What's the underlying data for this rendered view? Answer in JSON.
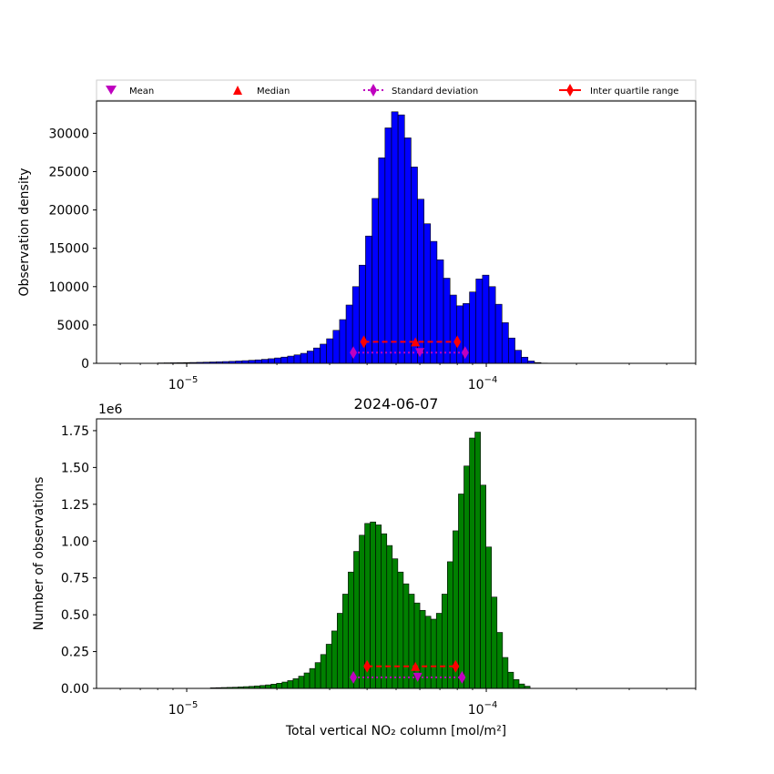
{
  "legend": {
    "mean_label": "Mean",
    "median_label": "Median",
    "std_label": "Standard deviation",
    "iqr_label": "Inter quartile range",
    "mean_color": "#bf00bf",
    "median_color": "#ff0000",
    "std_color": "#bf00bf",
    "iqr_color": "#ff0000"
  },
  "chart_data": [
    {
      "type": "bar",
      "xscale": "log",
      "xlim": [
        5e-06,
        0.0005
      ],
      "ylim": [
        0,
        34200
      ],
      "ylabel": "Observation density",
      "title": "",
      "bar_color": "#0000ff",
      "edge_color": "#000000",
      "x_tick_labels": [
        {
          "value": 1e-05,
          "base": "10",
          "exp": "−5"
        },
        {
          "value": 0.0001,
          "base": "10",
          "exp": "−4"
        }
      ],
      "y_ticks": [
        0,
        5000,
        10000,
        15000,
        20000,
        25000,
        30000
      ],
      "y_tick_labels": [
        "0",
        "5000",
        "10000",
        "15000",
        "20000",
        "25000",
        "30000"
      ],
      "bin_range": [
        8e-06,
        0.00016
      ],
      "values": [
        50,
        60,
        70,
        80,
        95,
        110,
        130,
        150,
        175,
        200,
        230,
        260,
        300,
        345,
        395,
        450,
        520,
        600,
        700,
        810,
        940,
        1100,
        1300,
        1600,
        2000,
        2500,
        3200,
        4300,
        5700,
        7600,
        10000,
        12800,
        16600,
        21500,
        26800,
        30700,
        32800,
        32400,
        29400,
        25600,
        21400,
        18200,
        15900,
        13500,
        11100,
        8900,
        7500,
        7800,
        9300,
        11000,
        11500,
        10000,
        7700,
        5300,
        3300,
        1700,
        800,
        300,
        100,
        30
      ],
      "markers": {
        "iqr": {
          "x": [
            3.9e-05,
            8e-05
          ],
          "y": 2800
        },
        "median": {
          "x": 5.8e-05,
          "y": 2800
        },
        "std": {
          "x": [
            3.6e-05,
            8.5e-05
          ],
          "y": 1400
        },
        "mean": {
          "x": 6e-05,
          "y": 1400
        }
      }
    },
    {
      "type": "bar",
      "xscale": "log",
      "xlim": [
        5e-06,
        0.0005
      ],
      "ylim": [
        0,
        1.83
      ],
      "y_multiplier_label": "1e6",
      "title": "2024-06-07",
      "ylabel": "Number of observations",
      "xlabel": "Total vertical NO₂ column [mol/m²]",
      "bar_color": "#008000",
      "edge_color": "#000000",
      "x_tick_labels": [
        {
          "value": 1e-05,
          "base": "10",
          "exp": "−5"
        },
        {
          "value": 0.0001,
          "base": "10",
          "exp": "−4"
        }
      ],
      "y_ticks": [
        0,
        0.25,
        0.5,
        0.75,
        1.0,
        1.25,
        1.5,
        1.75
      ],
      "y_tick_labels": [
        "0.00",
        "0.25",
        "0.50",
        "0.75",
        "1.00",
        "1.25",
        "1.50",
        "1.75"
      ],
      "bin_range": [
        1.2e-05,
        0.00014
      ],
      "values": [
        0.004,
        0.005,
        0.006,
        0.007,
        0.008,
        0.01,
        0.012,
        0.014,
        0.017,
        0.02,
        0.024,
        0.029,
        0.035,
        0.043,
        0.053,
        0.066,
        0.083,
        0.105,
        0.135,
        0.175,
        0.23,
        0.3,
        0.39,
        0.51,
        0.64,
        0.79,
        0.93,
        1.04,
        1.12,
        1.13,
        1.11,
        1.05,
        0.97,
        0.88,
        0.79,
        0.71,
        0.64,
        0.58,
        0.53,
        0.49,
        0.47,
        0.51,
        0.64,
        0.86,
        1.07,
        1.32,
        1.51,
        1.7,
        1.74,
        1.38,
        0.96,
        0.62,
        0.38,
        0.21,
        0.11,
        0.06,
        0.03,
        0.015
      ],
      "markers": {
        "iqr": {
          "x": [
            4e-05,
            7.9e-05
          ],
          "y": 0.15
        },
        "median": {
          "x": 5.8e-05,
          "y": 0.15
        },
        "std": {
          "x": [
            3.6e-05,
            8.3e-05
          ],
          "y": 0.075
        },
        "mean": {
          "x": 5.9e-05,
          "y": 0.075
        }
      }
    }
  ]
}
